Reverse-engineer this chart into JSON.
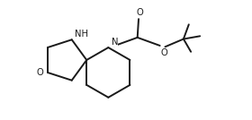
{
  "bg_color": "#ffffff",
  "line_color": "#1a1a1a",
  "line_width": 1.4,
  "font_size": 7.2,
  "figsize": [
    2.8,
    1.34
  ],
  "dpi": 100,
  "xlim": [
    0,
    10.5
  ],
  "ylim": [
    0,
    5.0
  ],
  "spiro_x": 3.6,
  "spiro_y": 2.5
}
